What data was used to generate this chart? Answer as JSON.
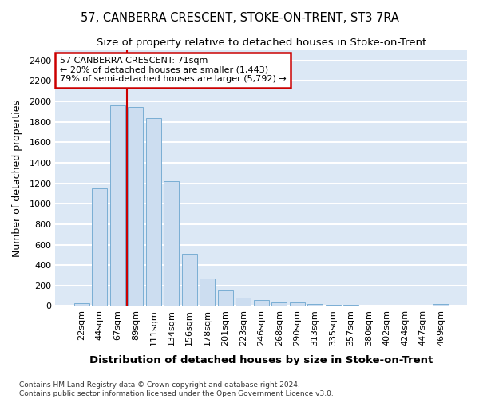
{
  "title": "57, CANBERRA CRESCENT, STOKE-ON-TRENT, ST3 7RA",
  "subtitle": "Size of property relative to detached houses in Stoke-on-Trent",
  "xlabel": "Distribution of detached houses by size in Stoke-on-Trent",
  "ylabel": "Number of detached properties",
  "categories": [
    "22sqm",
    "44sqm",
    "67sqm",
    "89sqm",
    "111sqm",
    "134sqm",
    "156sqm",
    "178sqm",
    "201sqm",
    "223sqm",
    "246sqm",
    "268sqm",
    "290sqm",
    "313sqm",
    "335sqm",
    "357sqm",
    "380sqm",
    "402sqm",
    "424sqm",
    "447sqm",
    "469sqm"
  ],
  "values": [
    25,
    1150,
    1960,
    1950,
    1840,
    1220,
    510,
    265,
    155,
    80,
    55,
    35,
    35,
    20,
    10,
    8,
    5,
    5,
    3,
    3,
    18
  ],
  "bar_color": "#ccddf0",
  "bar_edge_color": "#7aaed4",
  "vline_color": "#cc0000",
  "vline_x": 2.5,
  "annotation_line1": "57 CANBERRA CRESCENT: 71sqm",
  "annotation_line2": "← 20% of detached houses are smaller (1,443)",
  "annotation_line3": "79% of semi-detached houses are larger (5,792) →",
  "annotation_box_facecolor": "white",
  "annotation_box_edgecolor": "#cc0000",
  "ylim": [
    0,
    2500
  ],
  "yticks": [
    0,
    200,
    400,
    600,
    800,
    1000,
    1200,
    1400,
    1600,
    1800,
    2000,
    2200,
    2400
  ],
  "plot_bg_color": "#dce8f5",
  "fig_bg_color": "#ffffff",
  "grid_color": "#ffffff",
  "title_fontsize": 10.5,
  "subtitle_fontsize": 9.5,
  "tick_fontsize": 8,
  "ylabel_fontsize": 9,
  "xlabel_fontsize": 9.5,
  "annotation_fontsize": 8,
  "footer_text": "Contains HM Land Registry data © Crown copyright and database right 2024.\nContains public sector information licensed under the Open Government Licence v3.0.",
  "footer_fontsize": 6.5
}
